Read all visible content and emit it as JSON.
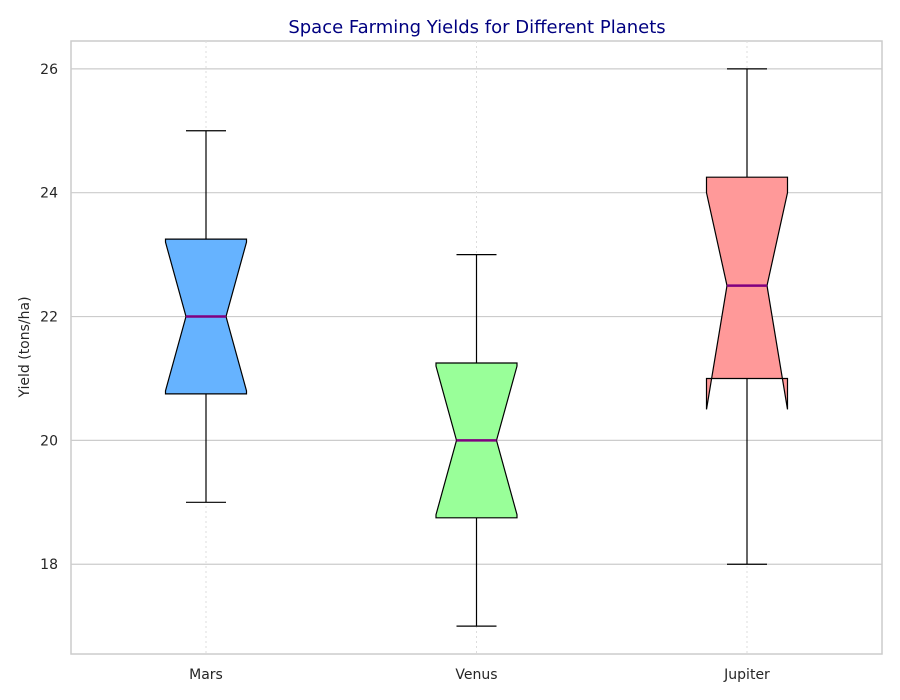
{
  "chart_data": {
    "type": "boxplot",
    "title": "Space Farming Yields for Different Planets",
    "xlabel": "",
    "ylabel": "Yield (tons/ha)",
    "ylim": [
      16.55,
      26.45
    ],
    "yticks": [
      18,
      20,
      22,
      24,
      26
    ],
    "notched": true,
    "grid": {
      "y": true,
      "x_dotted": true
    },
    "median_color": "#800080",
    "categories": [
      "Mars",
      "Venus",
      "Jupiter"
    ],
    "boxes": [
      {
        "category": "Mars",
        "whisker_low": 19,
        "q1": 20.75,
        "median": 22,
        "q3": 23.25,
        "whisker_high": 25,
        "notch_low": 20.8,
        "notch_high": 23.2,
        "color": "#66b3ff"
      },
      {
        "category": "Venus",
        "whisker_low": 17,
        "q1": 18.75,
        "median": 20,
        "q3": 21.25,
        "whisker_high": 23,
        "notch_low": 18.8,
        "notch_high": 21.2,
        "color": "#99ff99"
      },
      {
        "category": "Jupiter",
        "whisker_low": 18,
        "q1": 21,
        "median": 22.5,
        "q3": 24.25,
        "whisker_high": 26,
        "notch_low": 20.5,
        "notch_high": 24.0,
        "color": "#ff9999"
      }
    ]
  }
}
